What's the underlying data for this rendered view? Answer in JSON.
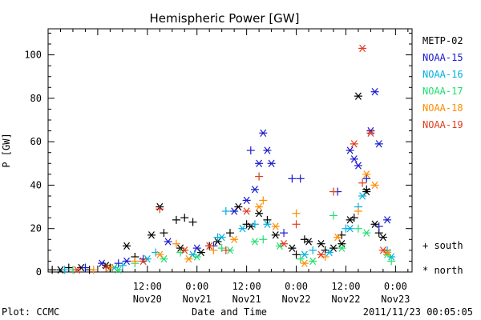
{
  "chart_data": {
    "type": "scatter",
    "title": "Hemispheric Power [GW]",
    "xlabel": "Date and Time",
    "ylabel": "P [GW]",
    "xlim": [
      "2011-11-19 12:00",
      "2011-11-23 04:00"
    ],
    "ylim": [
      0,
      112
    ],
    "y_ticks": [
      "0",
      "20",
      "40",
      "60",
      "80",
      "100"
    ],
    "x_ticks": [
      {
        "time": "2011-11-20 12:00",
        "line1": "12:00",
        "line2": "Nov20"
      },
      {
        "time": "2011-11-21 00:00",
        "line1": "0:00",
        "line2": "Nov21"
      },
      {
        "time": "2011-11-21 12:00",
        "line1": "12:00",
        "line2": "Nov21"
      },
      {
        "time": "2011-11-22 00:00",
        "line1": "0:00",
        "line2": "Nov22"
      },
      {
        "time": "2011-11-22 12:00",
        "line1": "12:00",
        "line2": "Nov22"
      },
      {
        "time": "2011-11-23 00:00",
        "line1": "0:00",
        "line2": "Nov23"
      }
    ],
    "legend_position": "right",
    "markers": {
      "south": "+",
      "north": "*"
    },
    "marker_legend": [
      {
        "symbol": "+",
        "label": "south"
      },
      {
        "symbol": "*",
        "label": "north"
      }
    ],
    "series": [
      {
        "name": "METP-02",
        "color": "#000000",
        "south": [
          [
            "2011-11-19 13:00",
            1
          ],
          [
            "2011-11-19 17:00",
            2
          ],
          [
            "2011-11-19 22:00",
            1
          ],
          [
            "2011-11-20 03:00",
            2
          ],
          [
            "2011-11-20 09:00",
            7
          ],
          [
            "2011-11-20 16:00",
            18
          ],
          [
            "2011-11-20 19:00",
            24
          ],
          [
            "2011-11-20 21:00",
            25
          ],
          [
            "2011-11-20 23:00",
            23
          ],
          [
            "2011-11-21 03:00",
            12
          ],
          [
            "2011-11-21 08:00",
            18
          ],
          [
            "2011-11-21 12:00",
            22
          ],
          [
            "2011-11-21 17:00",
            24
          ],
          [
            "2011-11-22 00:00",
            8
          ],
          [
            "2011-11-22 02:00",
            15
          ],
          [
            "2011-11-22 07:00",
            10
          ],
          [
            "2011-11-22 11:00",
            17
          ],
          [
            "2011-11-22 14:00",
            25
          ],
          [
            "2011-11-22 17:00",
            38
          ],
          [
            "2011-11-22 20:00",
            18
          ]
        ],
        "north": [
          [
            "2011-11-19 15:00",
            1
          ],
          [
            "2011-11-19 20:00",
            2
          ],
          [
            "2011-11-20 02:00",
            3
          ],
          [
            "2011-11-20 07:00",
            12
          ],
          [
            "2011-11-20 13:00",
            17
          ],
          [
            "2011-11-20 15:00",
            30
          ],
          [
            "2011-11-20 20:00",
            11
          ],
          [
            "2011-11-21 01:00",
            9
          ],
          [
            "2011-11-21 05:00",
            14
          ],
          [
            "2011-11-21 10:00",
            30
          ],
          [
            "2011-11-21 13:00",
            21
          ],
          [
            "2011-11-21 15:00",
            27
          ],
          [
            "2011-11-21 19:00",
            17
          ],
          [
            "2011-11-21 23:00",
            11
          ],
          [
            "2011-11-22 03:00",
            14
          ],
          [
            "2011-11-22 06:00",
            13
          ],
          [
            "2011-11-22 09:00",
            11
          ],
          [
            "2011-11-22 11:00",
            13
          ],
          [
            "2011-11-22 13:00",
            24
          ],
          [
            "2011-11-22 15:00",
            81
          ],
          [
            "2011-11-22 17:00",
            37
          ],
          [
            "2011-11-22 19:00",
            22
          ],
          [
            "2011-11-22 21:00",
            16
          ]
        ]
      },
      {
        "name": "NOAA-15",
        "color": "#1a1acd",
        "south": [
          [
            "2011-11-19 21:00",
            2
          ],
          [
            "2011-11-20 05:00",
            4
          ],
          [
            "2011-11-20 11:00",
            6
          ],
          [
            "2011-11-21 04:00",
            12
          ],
          [
            "2011-11-21 13:00",
            56
          ],
          [
            "2011-11-21 21:00",
            18
          ],
          [
            "2011-11-21 23:00",
            43
          ],
          [
            "2011-11-22 01:00",
            43
          ],
          [
            "2011-11-22 10:00",
            37
          ],
          [
            "2011-11-22 17:00",
            43
          ],
          [
            "2011-11-22 20:00",
            21
          ]
        ],
        "north": [
          [
            "2011-11-20 01:00",
            4
          ],
          [
            "2011-11-20 07:00",
            5
          ],
          [
            "2011-11-20 17:00",
            14
          ],
          [
            "2011-11-21 00:00",
            11
          ],
          [
            "2011-11-21 09:00",
            28
          ],
          [
            "2011-11-21 12:00",
            33
          ],
          [
            "2011-11-21 14:00",
            38
          ],
          [
            "2011-11-21 15:00",
            50
          ],
          [
            "2011-11-21 16:00",
            64
          ],
          [
            "2011-11-21 17:00",
            56
          ],
          [
            "2011-11-21 18:00",
            50
          ],
          [
            "2011-11-22 13:00",
            56
          ],
          [
            "2011-11-22 14:00",
            52
          ],
          [
            "2011-11-22 15:00",
            49
          ],
          [
            "2011-11-22 18:00",
            65
          ],
          [
            "2011-11-22 19:00",
            83
          ],
          [
            "2011-11-22 20:00",
            59
          ],
          [
            "2011-11-22 22:00",
            24
          ]
        ]
      },
      {
        "name": "NOAA-16",
        "color": "#00b0e0",
        "south": [
          [
            "2011-11-19 16:00",
            1
          ],
          [
            "2011-11-20 06:00",
            3
          ],
          [
            "2011-11-20 14:00",
            9
          ],
          [
            "2011-11-21 05:00",
            16
          ],
          [
            "2011-11-21 07:00",
            28
          ],
          [
            "2011-11-21 14:00",
            22
          ],
          [
            "2011-11-22 04:00",
            10
          ],
          [
            "2011-11-22 12:00",
            20
          ],
          [
            "2011-11-22 15:00",
            30
          ],
          [
            "2011-11-22 22:00",
            10
          ]
        ],
        "north": [
          [
            "2011-11-20 04:00",
            2
          ],
          [
            "2011-11-20 12:00",
            6
          ],
          [
            "2011-11-20 23:00",
            8
          ],
          [
            "2011-11-21 06:00",
            16
          ],
          [
            "2011-11-21 11:00",
            20
          ],
          [
            "2011-11-21 17:00",
            22
          ],
          [
            "2011-11-22 02:00",
            8
          ],
          [
            "2011-11-22 08:00",
            9
          ],
          [
            "2011-11-22 13:00",
            20
          ],
          [
            "2011-11-22 16:00",
            35
          ],
          [
            "2011-11-22 23:00",
            7
          ]
        ]
      },
      {
        "name": "NOAA-17",
        "color": "#20e070",
        "south": [
          [
            "2011-11-19 18:00",
            1
          ],
          [
            "2011-11-20 09:00",
            4
          ],
          [
            "2011-11-20 20:00",
            9
          ],
          [
            "2011-11-21 06:00",
            11
          ],
          [
            "2011-11-21 16:00",
            15
          ],
          [
            "2011-11-22 01:00",
            6
          ],
          [
            "2011-11-22 09:00",
            26
          ],
          [
            "2011-11-22 15:00",
            20
          ],
          [
            "2011-11-22 23:00",
            5
          ]
        ],
        "north": [
          [
            "2011-11-20 05:00",
            1
          ],
          [
            "2011-11-20 16:00",
            6
          ],
          [
            "2011-11-21 00:00",
            7
          ],
          [
            "2011-11-21 08:00",
            10
          ],
          [
            "2011-11-21 14:00",
            14
          ],
          [
            "2011-11-21 20:00",
            12
          ],
          [
            "2011-11-22 04:00",
            5
          ],
          [
            "2011-11-22 11:00",
            11
          ],
          [
            "2011-11-22 17:00",
            18
          ],
          [
            "2011-11-22 22:00",
            8
          ]
        ]
      },
      {
        "name": "NOAA-18",
        "color": "#ff8c00",
        "south": [
          [
            "2011-11-19 23:00",
            1
          ],
          [
            "2011-11-20 09:00",
            5
          ],
          [
            "2011-11-20 19:00",
            13
          ],
          [
            "2011-11-21 04:00",
            10
          ],
          [
            "2011-11-21 16:00",
            33
          ],
          [
            "2011-11-22 00:00",
            27
          ],
          [
            "2011-11-22 07:00",
            7
          ],
          [
            "2011-11-22 15:00",
            28
          ]
        ],
        "north": [
          [
            "2011-11-20 03:00",
            2
          ],
          [
            "2011-11-20 15:00",
            8
          ],
          [
            "2011-11-20 22:00",
            6
          ],
          [
            "2011-11-21 09:00",
            15
          ],
          [
            "2011-11-21 15:00",
            30
          ],
          [
            "2011-11-21 19:00",
            21
          ],
          [
            "2011-11-22 02:00",
            4
          ],
          [
            "2011-11-22 10:00",
            16
          ],
          [
            "2011-11-22 17:00",
            45
          ],
          [
            "2011-11-22 19:00",
            40
          ],
          [
            "2011-11-22 22:00",
            9
          ]
        ]
      },
      {
        "name": "NOAA-19",
        "color": "#e03c1e",
        "south": [
          [
            "2011-11-20 02:00",
            2
          ],
          [
            "2011-11-20 15:00",
            29
          ],
          [
            "2011-11-21 07:00",
            10
          ],
          [
            "2011-11-21 15:00",
            44
          ],
          [
            "2011-11-22 00:00",
            22
          ],
          [
            "2011-11-22 09:00",
            37
          ],
          [
            "2011-11-22 16:00",
            41
          ]
        ],
        "north": [
          [
            "2011-11-19 19:00",
            1
          ],
          [
            "2011-11-20 11:00",
            5
          ],
          [
            "2011-11-20 21:00",
            10
          ],
          [
            "2011-11-21 03:00",
            12
          ],
          [
            "2011-11-21 12:00",
            28
          ],
          [
            "2011-11-21 21:00",
            13
          ],
          [
            "2011-11-22 06:00",
            8
          ],
          [
            "2011-11-22 14:00",
            59
          ],
          [
            "2011-11-22 16:00",
            103
          ],
          [
            "2011-11-22 18:00",
            64
          ],
          [
            "2011-11-22 21:00",
            10
          ]
        ]
      }
    ]
  },
  "footer": {
    "left": "Plot: CCMC",
    "right": "2011/11/23 00:05:05"
  }
}
